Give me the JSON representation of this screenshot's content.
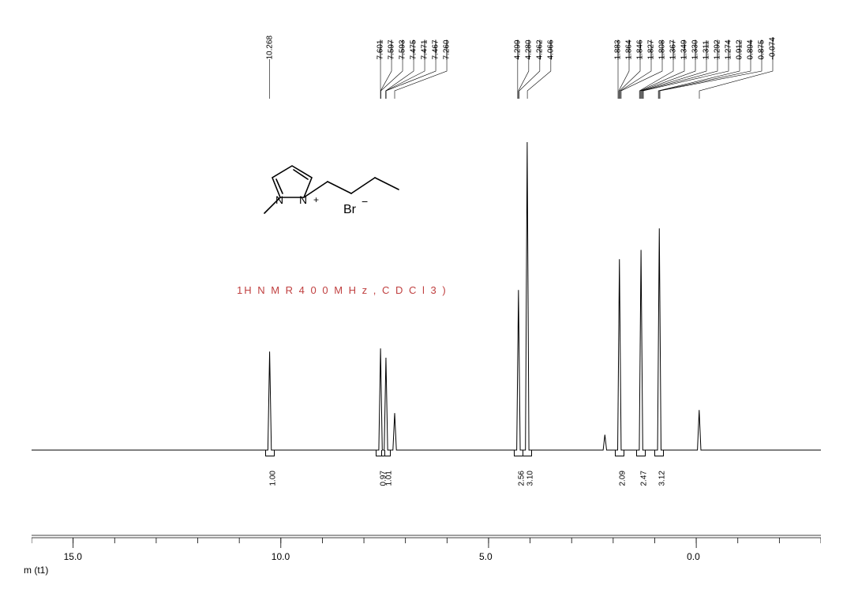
{
  "spectrum": {
    "type": "nmr-spectrum",
    "caption": "1H  N M R   4 0 0 M H z ,  C D C l 3  )",
    "caption_color": "#c04040",
    "caption_fontsize": 13,
    "background_color": "#ffffff",
    "peak_color": "#000000",
    "axis": {
      "title": "m (t1)",
      "xmax_ppm": 16.0,
      "xmin_ppm": -3.0,
      "ticks": [
        15.0,
        10.0,
        5.0,
        0.0
      ],
      "tick_fontsize": 12
    },
    "peak_labels": [
      {
        "ppm": 10.268,
        "strike": false
      },
      {
        "ppm": 7.601,
        "strike": true
      },
      {
        "ppm": 7.597,
        "strike": true
      },
      {
        "ppm": 7.593,
        "strike": true
      },
      {
        "ppm": 7.475,
        "strike": true
      },
      {
        "ppm": 7.471,
        "strike": true
      },
      {
        "ppm": 7.467,
        "strike": true
      },
      {
        "ppm": 7.26,
        "strike": true
      },
      {
        "ppm": 4.299,
        "strike": true
      },
      {
        "ppm": 4.28,
        "strike": true
      },
      {
        "ppm": 4.262,
        "strike": true
      },
      {
        "ppm": 4.066,
        "strike": true
      },
      {
        "ppm": 1.883,
        "strike": true
      },
      {
        "ppm": 1.864,
        "strike": true
      },
      {
        "ppm": 1.846,
        "strike": true
      },
      {
        "ppm": 1.827,
        "strike": true
      },
      {
        "ppm": 1.808,
        "strike": true
      },
      {
        "ppm": 1.367,
        "strike": true
      },
      {
        "ppm": 1.349,
        "strike": true
      },
      {
        "ppm": 1.33,
        "strike": true
      },
      {
        "ppm": 1.311,
        "strike": true
      },
      {
        "ppm": 1.292,
        "strike": true
      },
      {
        "ppm": 1.274,
        "strike": true
      },
      {
        "ppm": 0.912,
        "strike": true
      },
      {
        "ppm": 0.894,
        "strike": true
      },
      {
        "ppm": 0.875,
        "strike": true
      },
      {
        "ppm": -0.074,
        "strike": true
      }
    ],
    "peaks": [
      {
        "ppm": 10.27,
        "height": 0.32
      },
      {
        "ppm": 7.6,
        "height": 0.33
      },
      {
        "ppm": 7.47,
        "height": 0.3
      },
      {
        "ppm": 7.26,
        "height": 0.12
      },
      {
        "ppm": 4.28,
        "height": 0.52
      },
      {
        "ppm": 4.07,
        "height": 1.0
      },
      {
        "ppm": 2.2,
        "height": 0.05
      },
      {
        "ppm": 1.85,
        "height": 0.62
      },
      {
        "ppm": 1.33,
        "height": 0.65
      },
      {
        "ppm": 0.89,
        "height": 0.72
      },
      {
        "ppm": -0.07,
        "height": 0.13
      }
    ],
    "integrals": [
      {
        "ppm": 10.27,
        "value": "1.00"
      },
      {
        "ppm": 7.6,
        "value": "0.97"
      },
      {
        "ppm": 7.47,
        "value": "1.01"
      },
      {
        "ppm": 4.28,
        "value": "2.56"
      },
      {
        "ppm": 4.07,
        "value": "3.10"
      },
      {
        "ppm": 1.85,
        "value": "2.09"
      },
      {
        "ppm": 1.33,
        "value": "2.47"
      },
      {
        "ppm": 0.89,
        "value": "3.12"
      }
    ],
    "molecule": {
      "label_br": "Br",
      "label_n1": "N",
      "label_n2": "N"
    }
  }
}
